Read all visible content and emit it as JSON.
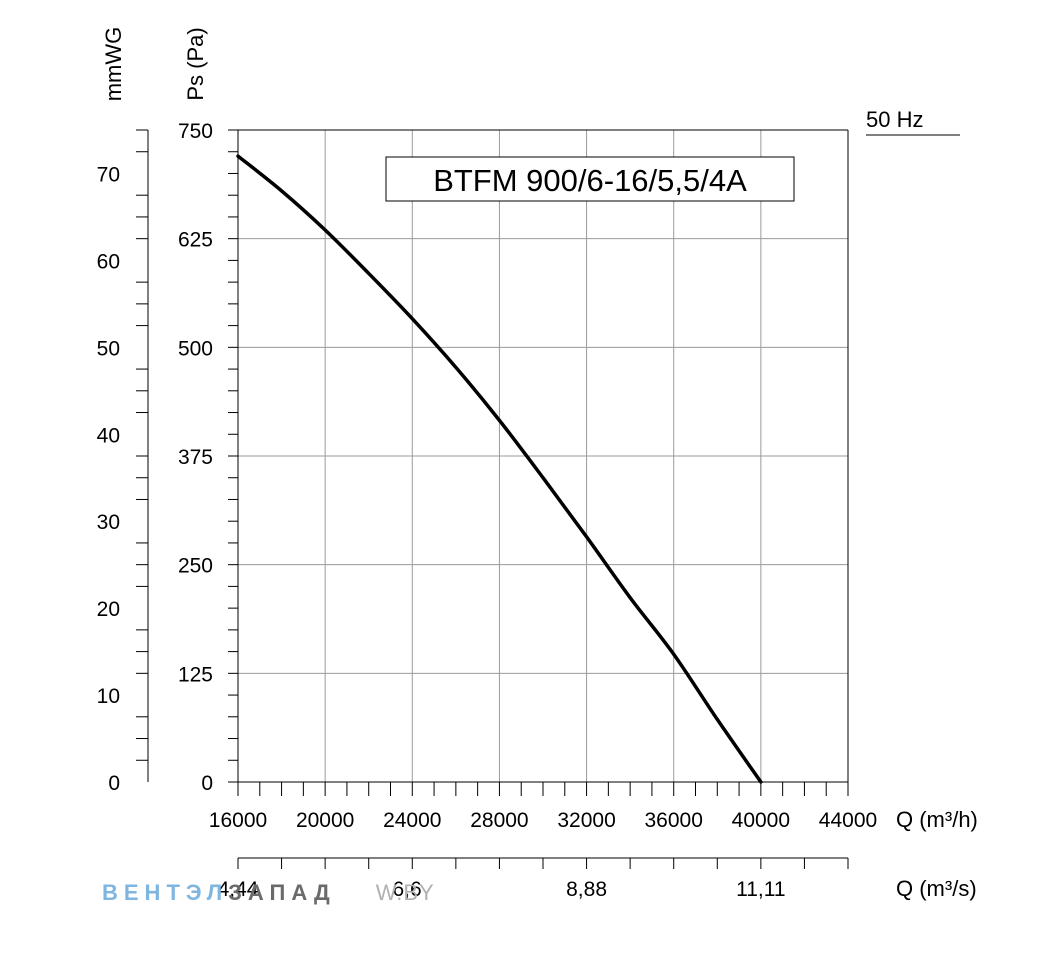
{
  "chart_data": {
    "type": "line",
    "title": "BTFM 900/6-16/5,5/4A",
    "frequency_label": "50 Hz",
    "xlabel": "Q (m³/h)",
    "x2label": "Q (m³/s)",
    "ylabel": "Ps (Pa)",
    "y2label": "mmWG",
    "xlim": [
      16000,
      44000
    ],
    "ylim": [
      0,
      750
    ],
    "y2lim": [
      0,
      75
    ],
    "x_ticks": [
      "16000",
      "20000",
      "24000",
      "28000",
      "32000",
      "36000",
      "40000",
      "44000"
    ],
    "y_ticks": [
      "0",
      "125",
      "250",
      "375",
      "500",
      "625",
      "750"
    ],
    "y2_ticks": [
      "0",
      "10",
      "20",
      "30",
      "40",
      "50",
      "60",
      "70"
    ],
    "x2_ticks": [
      {
        "label": "4,44",
        "q": 16000
      },
      {
        "label": "6,6",
        "q": 23760
      },
      {
        "label": "8,88",
        "q": 32000
      },
      {
        "label": "11,11",
        "q": 40000
      }
    ],
    "grid": true,
    "series": [
      {
        "x": [
          16000,
          18000,
          20000,
          22000,
          24000,
          26000,
          28000,
          30000,
          32000,
          34000,
          36000,
          38000,
          40000
        ],
        "y": [
          720,
          680,
          635,
          585,
          533,
          477,
          416,
          350,
          282,
          212,
          147,
          72,
          0
        ]
      }
    ]
  },
  "watermark": {
    "part1": "ВЕНТЭЛ",
    "part2": "ЗАПАД",
    "part3": "W.BY",
    "color1": "#7fb6e0",
    "color2": "#6a6a6a",
    "color3": "#b0b0b0"
  }
}
